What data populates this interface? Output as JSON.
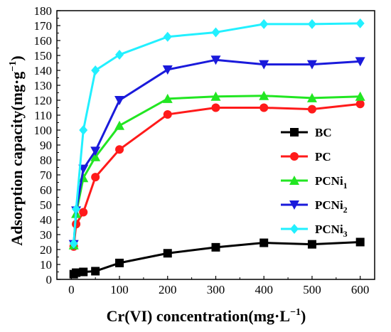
{
  "chart_data": {
    "type": "line",
    "xlabel": "Cr(VI) concentration(mg·L",
    "xlabel_sup": "−1",
    "xlabel_tail": ")",
    "ylabel": "Adsorption capacity(mg·g",
    "ylabel_sup": "−1",
    "ylabel_tail": ")",
    "xlim": [
      -30,
      630
    ],
    "ylim": [
      0,
      180
    ],
    "xticks": [
      0,
      100,
      200,
      300,
      400,
      500,
      600
    ],
    "yticks": [
      0,
      10,
      20,
      30,
      40,
      50,
      60,
      70,
      80,
      90,
      100,
      110,
      120,
      130,
      140,
      150,
      160,
      170,
      180
    ],
    "x": [
      5,
      10,
      25,
      50,
      100,
      200,
      300,
      400,
      500,
      600
    ],
    "legend_position": "right",
    "series": [
      {
        "name": "BC",
        "name_base": "BC",
        "name_sub": "",
        "color": "#000000",
        "marker": "square",
        "values": [
          3.5,
          4.5,
          5,
          5.5,
          11,
          17.5,
          21.5,
          24.5,
          23.5,
          25
        ]
      },
      {
        "name": "PC",
        "name_base": "PC",
        "name_sub": "",
        "color": "#ff1a1a",
        "marker": "circle",
        "values": [
          22,
          37,
          45,
          68.5,
          87,
          110.5,
          115,
          115,
          114,
          117.5
        ]
      },
      {
        "name": "PCNi1",
        "name_base": "PCNi",
        "name_sub": "1",
        "color": "#22e622",
        "marker": "triangle-up",
        "values": [
          23,
          44,
          68,
          82,
          103,
          121,
          122.5,
          123,
          121.5,
          122.5
        ]
      },
      {
        "name": "PCNi2",
        "name_base": "PCNi",
        "name_sub": "2",
        "color": "#1a1adb",
        "marker": "triangle-down",
        "values": [
          23.5,
          46,
          74,
          86,
          120,
          140.5,
          147,
          144,
          144,
          146
        ]
      },
      {
        "name": "PCNi3",
        "name_base": "PCNi",
        "name_sub": "3",
        "color": "#22f0ff",
        "marker": "diamond",
        "values": [
          24,
          47,
          100,
          140,
          150.5,
          162.5,
          165.5,
          171,
          171,
          171.5
        ]
      }
    ]
  }
}
